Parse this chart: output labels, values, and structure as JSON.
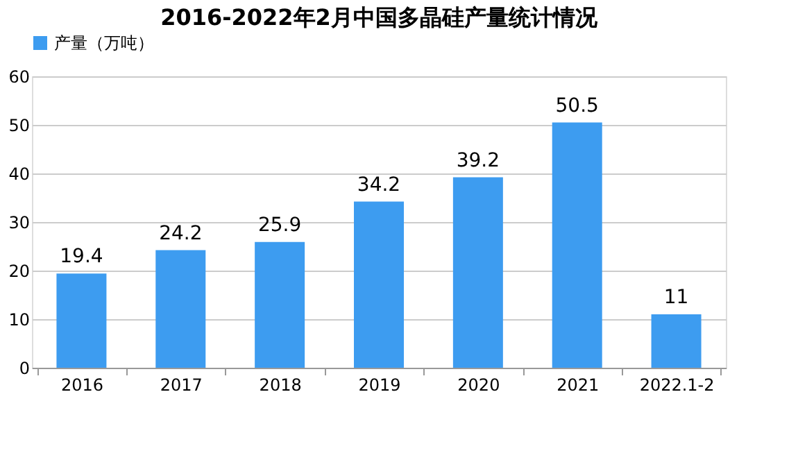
{
  "chart_data": {
    "type": "bar",
    "title": "2016-2022年2月中国多晶硅产量统计情况",
    "categories": [
      "2016",
      "2017",
      "2018",
      "2019",
      "2020",
      "2021",
      "2022.1-2"
    ],
    "series": [
      {
        "name": "产量（万吨）",
        "color": "#3d9cf0",
        "values": [
          19.4,
          24.2,
          25.9,
          34.2,
          39.2,
          50.5,
          11
        ]
      }
    ],
    "ylim": [
      0,
      60
    ],
    "yticks": [
      0,
      10,
      20,
      30,
      40,
      50,
      60
    ],
    "grid": "y",
    "legend": "top",
    "data_labels": true
  }
}
